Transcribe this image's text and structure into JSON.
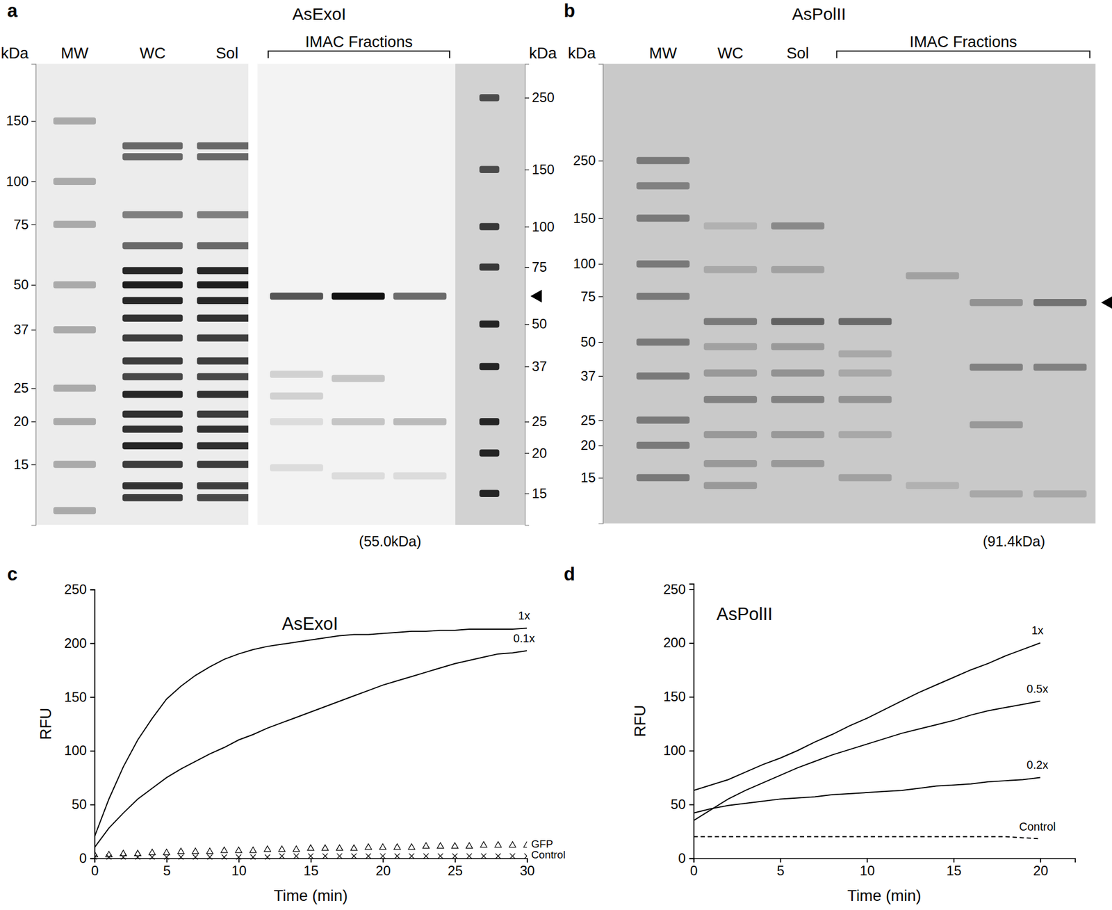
{
  "gels": [
    {
      "panel": "a",
      "title": "AsExoI",
      "group_label": "IMAC Fractions",
      "caption": "(55.0kDa)",
      "arrow_kda": 61,
      "parts": [
        {
          "axis_title": "kDa",
          "tick_side": "left",
          "ylim": [
            10,
            220
          ],
          "yticks": [
            150,
            100,
            75,
            50,
            37,
            25,
            20,
            15
          ],
          "lanes": [
            {
              "label": "MW",
              "fraction": false,
              "bands": [
                [
                  150,
                  0.3
                ],
                [
                  100,
                  0.3
                ],
                [
                  75,
                  0.3
                ],
                [
                  50,
                  0.3
                ],
                [
                  37,
                  0.3
                ],
                [
                  25,
                  0.3
                ],
                [
                  20,
                  0.3
                ],
                [
                  15,
                  0.3
                ],
                [
                  11,
                  0.3
                ]
              ]
            },
            {
              "label": "WC",
              "fraction": false,
              "bands": [
                [
                  127,
                  0.6
                ],
                [
                  118,
                  0.6
                ],
                [
                  80,
                  0.5
                ],
                [
                  65,
                  0.6
                ],
                [
                  55,
                  0.9
                ],
                [
                  50,
                  0.95
                ],
                [
                  45,
                  0.9
                ],
                [
                  40,
                  0.85
                ],
                [
                  35,
                  0.8
                ],
                [
                  30,
                  0.8
                ],
                [
                  27,
                  0.75
                ],
                [
                  24,
                  0.9
                ],
                [
                  21,
                  0.85
                ],
                [
                  19,
                  0.85
                ],
                [
                  17,
                  0.9
                ],
                [
                  15,
                  0.8
                ],
                [
                  13,
                  0.85
                ],
                [
                  12,
                  0.8
                ]
              ]
            },
            {
              "label": "Sol",
              "fraction": false,
              "bands": [
                [
                  127,
                  0.6
                ],
                [
                  118,
                  0.6
                ],
                [
                  80,
                  0.5
                ],
                [
                  65,
                  0.6
                ],
                [
                  55,
                  0.9
                ],
                [
                  50,
                  0.95
                ],
                [
                  45,
                  0.9
                ],
                [
                  40,
                  0.85
                ],
                [
                  35,
                  0.8
                ],
                [
                  30,
                  0.8
                ],
                [
                  27,
                  0.75
                ],
                [
                  24,
                  0.85
                ],
                [
                  21,
                  0.8
                ],
                [
                  19,
                  0.85
                ],
                [
                  17,
                  0.85
                ],
                [
                  15,
                  0.8
                ],
                [
                  13,
                  0.8
                ],
                [
                  12,
                  0.75
                ]
              ]
            }
          ]
        },
        {
          "axis_title": "kDa",
          "tick_side": "right",
          "ylim": [
            12,
            318
          ],
          "yticks": [
            250,
            150,
            100,
            75,
            50,
            37,
            25,
            20,
            15
          ],
          "lanes": [
            {
              "label": null,
              "fraction": true,
              "bands": [
                [
                  61,
                  0.7
                ],
                [
                  35,
                  0.15
                ],
                [
                  30,
                  0.15
                ],
                [
                  25,
                  0.1
                ],
                [
                  18,
                  0.1
                ]
              ]
            },
            {
              "label": null,
              "fraction": true,
              "bands": [
                [
                  61,
                  1
                ],
                [
                  34,
                  0.2
                ],
                [
                  25,
                  0.2
                ],
                [
                  17,
                  0.1
                ]
              ]
            },
            {
              "label": null,
              "fraction": true,
              "bands": [
                [
                  61,
                  0.6
                ],
                [
                  25,
                  0.25
                ],
                [
                  17,
                  0.1
                ]
              ]
            },
            {
              "label": null,
              "fraction": false,
              "bands": [
                [
                  250,
                  0.7
                ],
                [
                  150,
                  0.7
                ],
                [
                  100,
                  0.8
                ],
                [
                  75,
                  0.8
                ],
                [
                  50,
                  0.9
                ],
                [
                  37,
                  0.9
                ],
                [
                  25,
                  0.9
                ],
                [
                  20,
                  0.9
                ],
                [
                  15,
                  0.9
                ]
              ]
            }
          ]
        }
      ]
    },
    {
      "panel": "b",
      "title": "AsPolII",
      "group_label": "IMAC Fractions",
      "caption": "(91.4kDa)",
      "arrow_kda": 71,
      "parts": [
        {
          "axis_title": "kDa",
          "tick_side": "left",
          "ylim": [
            10,
            590
          ],
          "yticks": [
            250,
            150,
            100,
            75,
            50,
            37,
            25,
            20,
            15
          ],
          "lanes": [
            {
              "label": "MW",
              "fraction": false,
              "bands": [
                [
                  250,
                  0.5
                ],
                [
                  200,
                  0.45
                ],
                [
                  150,
                  0.5
                ],
                [
                  100,
                  0.5
                ],
                [
                  75,
                  0.5
                ],
                [
                  50,
                  0.5
                ],
                [
                  37,
                  0.5
                ],
                [
                  25,
                  0.5
                ],
                [
                  20,
                  0.5
                ],
                [
                  15,
                  0.5
                ]
              ]
            },
            {
              "label": "WC",
              "fraction": false,
              "bands": [
                [
                  140,
                  0.15
                ],
                [
                  95,
                  0.2
                ],
                [
                  60,
                  0.5
                ],
                [
                  48,
                  0.25
                ],
                [
                  38,
                  0.3
                ],
                [
                  30,
                  0.45
                ],
                [
                  22,
                  0.3
                ],
                [
                  17,
                  0.3
                ],
                [
                  14,
                  0.3
                ]
              ]
            },
            {
              "label": "Sol",
              "fraction": false,
              "bands": [
                [
                  140,
                  0.4
                ],
                [
                  95,
                  0.25
                ],
                [
                  60,
                  0.65
                ],
                [
                  48,
                  0.3
                ],
                [
                  38,
                  0.35
                ],
                [
                  30,
                  0.45
                ],
                [
                  22,
                  0.3
                ],
                [
                  17,
                  0.3
                ]
              ]
            },
            {
              "label": null,
              "fraction": true,
              "bands": [
                [
                  60,
                  0.6
                ],
                [
                  45,
                  0.2
                ],
                [
                  38,
                  0.2
                ],
                [
                  30,
                  0.35
                ],
                [
                  22,
                  0.2
                ],
                [
                  15,
                  0.25
                ]
              ]
            },
            {
              "label": null,
              "fraction": true,
              "bands": [
                [
                  90,
                  0.25
                ],
                [
                  14,
                  0.15
                ]
              ]
            },
            {
              "label": null,
              "fraction": true,
              "bands": [
                [
                  71,
                  0.35
                ],
                [
                  40,
                  0.45
                ],
                [
                  24,
                  0.3
                ],
                [
                  13,
                  0.2
                ]
              ]
            },
            {
              "label": null,
              "fraction": true,
              "bands": [
                [
                  71,
                  0.55
                ],
                [
                  40,
                  0.45
                ],
                [
                  13,
                  0.2
                ]
              ]
            }
          ]
        }
      ]
    }
  ],
  "chart_data": [
    {
      "type": "line",
      "panel": "c",
      "title": "AsExoI",
      "x_label": "Time (min)",
      "y_label": "RFU",
      "xlim": [
        0,
        30
      ],
      "ylim": [
        0,
        250
      ],
      "xticks": [
        0,
        5,
        10,
        15,
        20,
        25,
        30
      ],
      "yticks": [
        0,
        50,
        100,
        150,
        200,
        250
      ],
      "x": [
        0,
        1,
        2,
        3,
        4,
        5,
        6,
        7,
        8,
        9,
        10,
        11,
        12,
        13,
        14,
        15,
        16,
        17,
        18,
        19,
        20,
        21,
        22,
        23,
        24,
        25,
        26,
        27,
        28,
        29,
        30
      ],
      "series": [
        {
          "name": "1x",
          "color": "#000000",
          "line_style": "solid",
          "values": [
            20,
            55,
            85,
            110,
            130,
            148,
            160,
            170,
            178,
            185,
            190,
            194,
            197,
            199,
            201,
            203,
            205,
            207,
            208,
            208,
            209,
            210,
            211,
            211,
            212,
            212,
            213,
            213,
            213,
            213,
            214
          ]
        },
        {
          "name": "0.1x",
          "color": "#000000",
          "line_style": "solid",
          "values": [
            10,
            28,
            42,
            55,
            65,
            75,
            83,
            90,
            97,
            103,
            110,
            115,
            121,
            126,
            131,
            136,
            141,
            146,
            151,
            156,
            161,
            165,
            169,
            173,
            177,
            181,
            184,
            187,
            190,
            191,
            193
          ]
        },
        {
          "name": "GFP",
          "color": "#000000",
          "line_style": "none",
          "marker": "triangle",
          "values": [
            3,
            3,
            4,
            4,
            5,
            5,
            6,
            6,
            6,
            7,
            7,
            7,
            8,
            8,
            8,
            9,
            9,
            9,
            9,
            10,
            10,
            10,
            10,
            11,
            11,
            11,
            11,
            12,
            12,
            12,
            12
          ]
        },
        {
          "name": "Control",
          "color": "#000000",
          "line_style": "none",
          "marker": "x",
          "values": [
            1,
            1,
            1,
            1,
            1,
            1,
            1,
            1,
            1,
            1,
            1,
            1,
            1,
            2,
            2,
            2,
            2,
            2,
            2,
            2,
            2,
            2,
            2,
            2,
            2,
            2,
            2,
            2,
            2,
            2,
            2
          ]
        }
      ]
    },
    {
      "type": "line",
      "panel": "d",
      "title": "AsPolII",
      "x_label": "Time (min)",
      "y_label": "RFU",
      "xlim": [
        0,
        22
      ],
      "ylim": [
        0,
        255
      ],
      "xticks": [
        0,
        5,
        10,
        15,
        20
      ],
      "yticks": [
        0,
        50,
        100,
        150,
        200,
        250
      ],
      "x": [
        0,
        1,
        2,
        3,
        4,
        5,
        6,
        7,
        8,
        9,
        10,
        11,
        12,
        13,
        14,
        15,
        16,
        17,
        18,
        19,
        20
      ],
      "series": [
        {
          "name": "1x",
          "color": "#000000",
          "line_style": "solid",
          "values": [
            63,
            68,
            73,
            80,
            87,
            93,
            100,
            108,
            115,
            123,
            130,
            138,
            146,
            154,
            161,
            168,
            175,
            181,
            188,
            194,
            200
          ]
        },
        {
          "name": "0.5x",
          "color": "#000000",
          "line_style": "solid",
          "values": [
            35,
            45,
            55,
            63,
            70,
            77,
            84,
            90,
            96,
            101,
            106,
            111,
            116,
            120,
            124,
            128,
            133,
            137,
            140,
            143,
            146
          ]
        },
        {
          "name": "0.2x",
          "color": "#000000",
          "line_style": "solid",
          "values": [
            42,
            46,
            49,
            51,
            53,
            55,
            56,
            57,
            59,
            60,
            61,
            62,
            63,
            65,
            67,
            68,
            69,
            71,
            72,
            73,
            75
          ]
        },
        {
          "name": "Control",
          "color": "#000000",
          "line_style": "dashed",
          "values": [
            20,
            20,
            20,
            20,
            20,
            20,
            20,
            20,
            20,
            20,
            20,
            20,
            20,
            20,
            20,
            20,
            20,
            20,
            20,
            19,
            18
          ]
        }
      ]
    }
  ]
}
